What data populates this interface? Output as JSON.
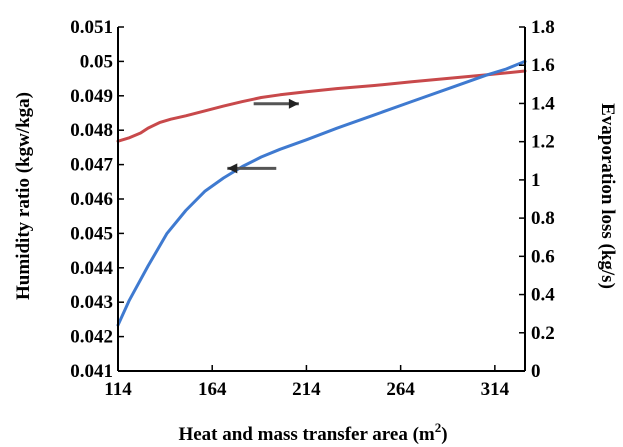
{
  "chart_data": {
    "type": "line",
    "title": "",
    "xlabel": "Heat and mass transfer area (m",
    "xlabel_sup": "2",
    "xlabel_close": ")",
    "ylabel_left": "Humidity ratio (kgw/kga)",
    "ylabel_right": "Evaporation loss (kg/s)",
    "xlim": [
      114,
      330
    ],
    "ylim_left": [
      0.041,
      0.051
    ],
    "ylim_right": [
      0,
      1.8
    ],
    "x_ticks": [
      114,
      164,
      214,
      264,
      314
    ],
    "x_tick_labels": [
      "114",
      "164",
      "214",
      "264",
      "314"
    ],
    "y_left_ticks": [
      0.041,
      0.042,
      0.043,
      0.044,
      0.045,
      0.046,
      0.047,
      0.048,
      0.049,
      0.05,
      0.051
    ],
    "y_left_tick_labels": [
      "0.041",
      "0.042",
      "0.043",
      "0.044",
      "0.045",
      "0.046",
      "0.047",
      "0.048",
      "0.049",
      "0.05",
      "0.051"
    ],
    "y_right_ticks": [
      0,
      0.2,
      0.4,
      0.6,
      0.8,
      1,
      1.2,
      1.4,
      1.6,
      1.8
    ],
    "y_right_tick_labels": [
      "0",
      "0.2",
      "0.4",
      "0.6",
      "0.8",
      "1",
      "1.2",
      "1.4",
      "1.6",
      "1.8"
    ],
    "grid": false,
    "legend": "none",
    "series": [
      {
        "axis": "left",
        "color": "#c8494b",
        "points": [
          [
            114,
            0.04768
          ],
          [
            120,
            0.04778
          ],
          [
            126,
            0.04792
          ],
          [
            130,
            0.04806
          ],
          [
            136,
            0.04822
          ],
          [
            142,
            0.04832
          ],
          [
            150,
            0.04842
          ],
          [
            160,
            0.04856
          ],
          [
            170,
            0.0487
          ],
          [
            180,
            0.04883
          ],
          [
            190,
            0.04895
          ],
          [
            200,
            0.04903
          ],
          [
            214,
            0.04912
          ],
          [
            230,
            0.04921
          ],
          [
            250,
            0.0493
          ],
          [
            270,
            0.04941
          ],
          [
            290,
            0.04951
          ],
          [
            310,
            0.04961
          ],
          [
            330,
            0.04972
          ]
        ]
      },
      {
        "axis": "right",
        "color": "#3f7ad0",
        "points": [
          [
            114,
            0.24
          ],
          [
            120,
            0.37
          ],
          [
            130,
            0.55
          ],
          [
            140,
            0.72
          ],
          [
            150,
            0.84
          ],
          [
            160,
            0.94
          ],
          [
            170,
            1.01
          ],
          [
            180,
            1.07
          ],
          [
            190,
            1.12
          ],
          [
            200,
            1.16
          ],
          [
            214,
            1.21
          ],
          [
            230,
            1.27
          ],
          [
            250,
            1.34
          ],
          [
            270,
            1.41
          ],
          [
            290,
            1.48
          ],
          [
            310,
            1.55
          ],
          [
            320,
            1.58
          ],
          [
            330,
            1.62
          ]
        ]
      }
    ],
    "annotations": [
      {
        "kind": "arrow",
        "direction": "right",
        "from_x": 186,
        "to_x": 210,
        "y_left": 0.04877
      },
      {
        "kind": "arrow",
        "direction": "left",
        "from_x": 198,
        "to_x": 172,
        "y_left": 0.04689
      }
    ]
  }
}
